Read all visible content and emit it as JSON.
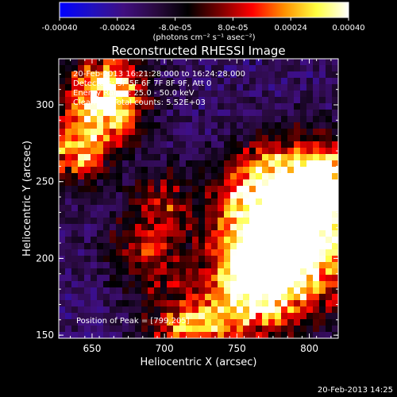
{
  "chart_data": {
    "type": "heatmap",
    "title": "Reconstructed RHESSI Image",
    "xlabel": "Heliocentric X (arcsec)",
    "ylabel": "Heliocentric Y (arcsec)",
    "xlim": [
      627,
      820
    ],
    "ylim": [
      148,
      330
    ],
    "x_ticks": [
      650,
      700,
      750,
      800
    ],
    "y_ticks": [
      150,
      200,
      250,
      300
    ],
    "colorbar": {
      "range": [
        -0.0004,
        0.0004
      ],
      "ticks": [
        "-0.00040",
        "-0.00024",
        "-8.0e-05",
        "8.0e-05",
        "0.00024",
        "0.00040"
      ],
      "tick_values": [
        -0.0004,
        -0.00024,
        -8e-05,
        8e-05,
        0.00024,
        0.0004
      ],
      "units": "(photons cm⁻² s⁻¹ asec⁻²)",
      "colors": [
        "#0000ff",
        "#2010c0",
        "#400f80",
        "#2a0a40",
        "#000000",
        "#7a0000",
        "#ff0000",
        "#ff9000",
        "#ffff40",
        "#ffffff"
      ]
    },
    "annotations": {
      "time": "20-Feb-2013 16:21:28.000 to 16:24:28.000",
      "detectors": "Detectors: 3F 5F 6F 7F 8F 9F, Att 0",
      "energy": "Energy Range: 25.0 - 50.0 keV",
      "clean": "Clean       Total counts: 5.52E+03",
      "peak": "Position of Peak = [799,205]"
    },
    "peak_position": [
      799,
      205
    ],
    "bright_sources": [
      {
        "x": 660,
        "y": 305,
        "r": 18,
        "amp": 0.0004
      },
      {
        "x": 640,
        "y": 270,
        "r": 16,
        "amp": 0.00024
      },
      {
        "x": 790,
        "y": 208,
        "r": 30,
        "amp": 0.0004
      },
      {
        "x": 775,
        "y": 235,
        "r": 25,
        "amp": 0.00034
      },
      {
        "x": 810,
        "y": 250,
        "r": 18,
        "amp": 0.00028
      },
      {
        "x": 760,
        "y": 180,
        "r": 18,
        "amp": 0.00032
      },
      {
        "x": 720,
        "y": 150,
        "r": 20,
        "amp": 0.00028
      },
      {
        "x": 690,
        "y": 205,
        "r": 20,
        "amp": 0.00016
      },
      {
        "x": 700,
        "y": 240,
        "r": 15,
        "amp": 0.00012
      }
    ],
    "background_level": -0.00018,
    "grid": false
  },
  "footer_timestamp": "20-Feb-2013 14:25"
}
